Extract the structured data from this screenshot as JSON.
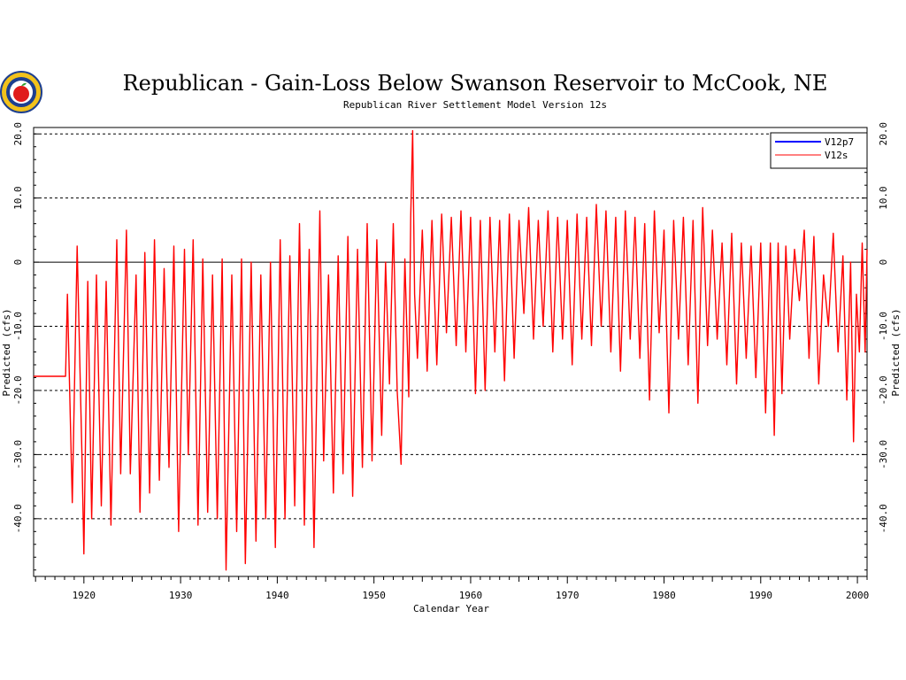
{
  "chart_data": {
    "type": "line",
    "title": "Republican - Gain-Loss Below Swanson Reservoir to McCook, NE",
    "subtitle": "Republican River Settlement Model Version 12s",
    "xlabel": "Calendar Year",
    "ylabel": "Predicted (cfs)",
    "ylabel_right": "Predicted (cfs)",
    "xlim": [
      1914.8,
      2001.0
    ],
    "ylim": [
      -49.0,
      21.0
    ],
    "x_ticks": [
      1920,
      1930,
      1940,
      1950,
      1960,
      1970,
      1980,
      1990,
      2000
    ],
    "y_ticks": [
      20,
      10,
      0,
      -10,
      -20,
      -30,
      -40
    ],
    "y_tick_labels": [
      "20.0",
      "10.0",
      "0",
      "-10.0",
      "-20.0",
      "-30.0",
      "-40.0"
    ],
    "grid": "horizontal dashed",
    "legend_position": "top-right",
    "series": [
      {
        "name": "V12p7",
        "color": "#0000ff",
        "points": []
      },
      {
        "name": "V12s",
        "color": "#ff0000",
        "points": [
          [
            1914.8,
            -17.8
          ],
          [
            1918.1,
            -17.8
          ],
          [
            1918.3,
            -5.0
          ],
          [
            1918.8,
            -37.5
          ],
          [
            1919.3,
            2.5
          ],
          [
            1919.8,
            -30.0
          ],
          [
            1920.0,
            -45.5
          ],
          [
            1920.4,
            -3.0
          ],
          [
            1920.8,
            -40.0
          ],
          [
            1921.3,
            -2.0
          ],
          [
            1921.8,
            -38.0
          ],
          [
            1922.3,
            -3.0
          ],
          [
            1922.8,
            -41.0
          ],
          [
            1923.4,
            3.5
          ],
          [
            1923.8,
            -33.0
          ],
          [
            1924.4,
            5.0
          ],
          [
            1924.8,
            -33.0
          ],
          [
            1925.4,
            -2.0
          ],
          [
            1925.8,
            -39.0
          ],
          [
            1926.3,
            1.5
          ],
          [
            1926.8,
            -36.0
          ],
          [
            1927.3,
            3.5
          ],
          [
            1927.8,
            -34.0
          ],
          [
            1928.3,
            -1.0
          ],
          [
            1928.8,
            -32.0
          ],
          [
            1929.3,
            2.5
          ],
          [
            1929.8,
            -42.0
          ],
          [
            1930.4,
            2.0
          ],
          [
            1930.8,
            -30.0
          ],
          [
            1931.3,
            3.5
          ],
          [
            1931.8,
            -41.0
          ],
          [
            1932.3,
            0.5
          ],
          [
            1932.8,
            -39.0
          ],
          [
            1933.3,
            -2.0
          ],
          [
            1933.8,
            -40.0
          ],
          [
            1934.3,
            0.5
          ],
          [
            1934.7,
            -48.0
          ],
          [
            1935.3,
            -2.0
          ],
          [
            1935.8,
            -42.0
          ],
          [
            1936.3,
            0.5
          ],
          [
            1936.7,
            -47.0
          ],
          [
            1937.3,
            0.0
          ],
          [
            1937.8,
            -43.5
          ],
          [
            1938.3,
            -2.0
          ],
          [
            1938.8,
            -40.0
          ],
          [
            1939.3,
            0.0
          ],
          [
            1939.8,
            -44.5
          ],
          [
            1940.3,
            3.5
          ],
          [
            1940.8,
            -40.0
          ],
          [
            1941.3,
            1.0
          ],
          [
            1941.8,
            -38.0
          ],
          [
            1942.3,
            6.0
          ],
          [
            1942.8,
            -41.0
          ],
          [
            1943.3,
            2.0
          ],
          [
            1943.8,
            -44.5
          ],
          [
            1944.4,
            8.0
          ],
          [
            1944.8,
            -31.0
          ],
          [
            1945.3,
            -2.0
          ],
          [
            1945.8,
            -36.0
          ],
          [
            1946.3,
            1.0
          ],
          [
            1946.8,
            -33.0
          ],
          [
            1947.3,
            4.0
          ],
          [
            1947.8,
            -36.5
          ],
          [
            1948.3,
            2.0
          ],
          [
            1948.8,
            -32.0
          ],
          [
            1949.3,
            6.0
          ],
          [
            1949.8,
            -31.0
          ],
          [
            1950.3,
            3.5
          ],
          [
            1950.8,
            -27.0
          ],
          [
            1951.2,
            0.0
          ],
          [
            1951.6,
            -19.0
          ],
          [
            1952.0,
            6.0
          ],
          [
            1952.4,
            -20.0
          ],
          [
            1952.8,
            -31.5
          ],
          [
            1953.2,
            0.5
          ],
          [
            1953.6,
            -21.0
          ],
          [
            1953.8,
            7.0
          ],
          [
            1954.0,
            20.5
          ],
          [
            1954.2,
            -5.0
          ],
          [
            1954.5,
            -15.0
          ],
          [
            1955.0,
            5.0
          ],
          [
            1955.5,
            -17.0
          ],
          [
            1956.0,
            6.5
          ],
          [
            1956.5,
            -16.0
          ],
          [
            1957.0,
            7.5
          ],
          [
            1957.5,
            -11.0
          ],
          [
            1958.0,
            7.0
          ],
          [
            1958.5,
            -13.0
          ],
          [
            1959.0,
            8.0
          ],
          [
            1959.5,
            -14.0
          ],
          [
            1960.0,
            7.0
          ],
          [
            1960.5,
            -20.5
          ],
          [
            1961.0,
            6.5
          ],
          [
            1961.5,
            -20.0
          ],
          [
            1962.0,
            7.0
          ],
          [
            1962.5,
            -14.0
          ],
          [
            1963.0,
            6.5
          ],
          [
            1963.5,
            -18.5
          ],
          [
            1964.0,
            7.5
          ],
          [
            1964.5,
            -15.0
          ],
          [
            1965.0,
            6.5
          ],
          [
            1965.5,
            -8.0
          ],
          [
            1966.0,
            8.5
          ],
          [
            1966.5,
            -12.0
          ],
          [
            1967.0,
            6.5
          ],
          [
            1967.5,
            -10.0
          ],
          [
            1968.0,
            8.0
          ],
          [
            1968.5,
            -14.0
          ],
          [
            1969.0,
            7.0
          ],
          [
            1969.5,
            -12.0
          ],
          [
            1970.0,
            6.5
          ],
          [
            1970.5,
            -16.0
          ],
          [
            1971.0,
            7.5
          ],
          [
            1971.5,
            -12.0
          ],
          [
            1972.0,
            7.0
          ],
          [
            1972.5,
            -13.0
          ],
          [
            1973.0,
            9.0
          ],
          [
            1973.5,
            -10.0
          ],
          [
            1974.0,
            8.0
          ],
          [
            1974.5,
            -14.0
          ],
          [
            1975.0,
            7.0
          ],
          [
            1975.5,
            -17.0
          ],
          [
            1976.0,
            8.0
          ],
          [
            1976.5,
            -12.0
          ],
          [
            1977.0,
            7.0
          ],
          [
            1977.5,
            -15.0
          ],
          [
            1978.0,
            6.0
          ],
          [
            1978.5,
            -21.5
          ],
          [
            1979.0,
            8.0
          ],
          [
            1979.5,
            -11.0
          ],
          [
            1980.0,
            5.0
          ],
          [
            1980.5,
            -23.5
          ],
          [
            1981.0,
            6.5
          ],
          [
            1981.5,
            -12.0
          ],
          [
            1982.0,
            7.0
          ],
          [
            1982.5,
            -16.0
          ],
          [
            1983.0,
            6.5
          ],
          [
            1983.5,
            -22.0
          ],
          [
            1984.0,
            8.5
          ],
          [
            1984.5,
            -13.0
          ],
          [
            1985.0,
            5.0
          ],
          [
            1985.5,
            -12.0
          ],
          [
            1986.0,
            3.0
          ],
          [
            1986.5,
            -16.0
          ],
          [
            1987.0,
            4.5
          ],
          [
            1987.5,
            -19.0
          ],
          [
            1988.0,
            3.0
          ],
          [
            1988.5,
            -15.0
          ],
          [
            1989.0,
            2.5
          ],
          [
            1989.5,
            -18.0
          ],
          [
            1990.0,
            3.0
          ],
          [
            1990.5,
            -23.5
          ],
          [
            1991.0,
            3.0
          ],
          [
            1991.4,
            -27.0
          ],
          [
            1991.8,
            3.0
          ],
          [
            1992.2,
            -20.5
          ],
          [
            1992.6,
            2.5
          ],
          [
            1993.0,
            -12.0
          ],
          [
            1993.5,
            2.0
          ],
          [
            1994.0,
            -6.0
          ],
          [
            1994.5,
            5.0
          ],
          [
            1995.0,
            -15.0
          ],
          [
            1995.5,
            4.0
          ],
          [
            1996.0,
            -19.0
          ],
          [
            1996.5,
            -2.0
          ],
          [
            1997.0,
            -10.0
          ],
          [
            1997.5,
            4.5
          ],
          [
            1998.0,
            -14.0
          ],
          [
            1998.5,
            1.0
          ],
          [
            1998.9,
            -21.5
          ],
          [
            1999.3,
            0.0
          ],
          [
            1999.6,
            -28.0
          ],
          [
            1999.9,
            -5.0
          ],
          [
            2000.2,
            -14.0
          ],
          [
            2000.5,
            3.0
          ],
          [
            2000.8,
            -14.0
          ],
          [
            2001.0,
            2.0
          ]
        ]
      }
    ]
  }
}
